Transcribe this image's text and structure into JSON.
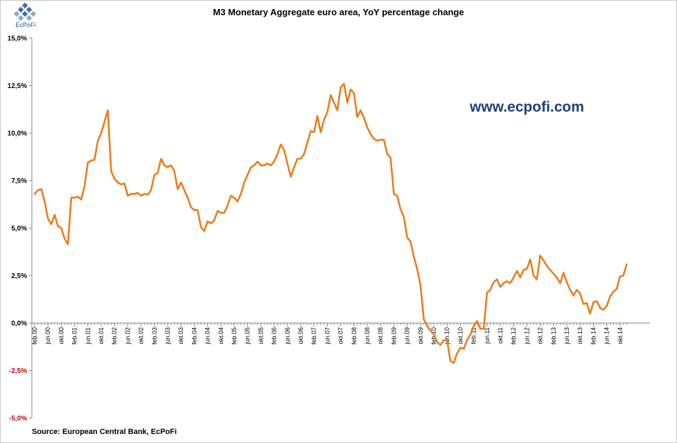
{
  "logo": {
    "text": "EcPoFi",
    "icon": "ecpofi-logo-icon"
  },
  "title": "M3 Monetary Aggregate euro area, YoY percentage change",
  "watermark": "www.ecpofi.com",
  "source": "Source: European Central Bank, EcPoFi",
  "colors": {
    "line": "#E87D1E",
    "negative_tick": "#C00000",
    "axis": "#868686"
  },
  "chart_data": {
    "type": "line",
    "title": "M3 Monetary Aggregate euro area, YoY percentage change",
    "ylim": [
      -5.0,
      15.0
    ],
    "yticks": [
      {
        "value": 15.0,
        "label": "15,0%"
      },
      {
        "value": 12.5,
        "label": "12,5%"
      },
      {
        "value": 10.0,
        "label": "10,0%"
      },
      {
        "value": 7.5,
        "label": "7,5%"
      },
      {
        "value": 5.0,
        "label": "5,0%"
      },
      {
        "value": 2.5,
        "label": "2,5%"
      },
      {
        "value": 0.0,
        "label": "0,0%"
      },
      {
        "value": -2.5,
        "label": "-2,5%"
      },
      {
        "value": -5.0,
        "label": "-5,0%"
      }
    ],
    "grid": false,
    "legend": "none",
    "x_start": "feb.00",
    "x_end": "jan.15",
    "xticks": [
      "feb.00",
      "jun.00",
      "okt.00",
      "feb.01",
      "jun.01",
      "okt.01",
      "feb.02",
      "jun.02",
      "okt.02",
      "feb.03",
      "jun.03",
      "okt.03",
      "feb.04",
      "jun.04",
      "okt.04",
      "feb.05",
      "jun.05",
      "okt.05",
      "feb.06",
      "jun.06",
      "okt.06",
      "feb.07",
      "jun.07",
      "okt.07",
      "feb.08",
      "jun.08",
      "okt.08",
      "feb.09",
      "jun.09",
      "okt.09",
      "feb.10",
      "jun.10",
      "okt.10",
      "feb.11",
      "jun.11",
      "okt.11",
      "feb.12",
      "jun.12",
      "okt.12",
      "feb.13",
      "jun.13",
      "okt.13",
      "feb.14",
      "jun.14",
      "okt.14"
    ],
    "series": [
      {
        "values": [
          6.8,
          7.0,
          7.05,
          6.4,
          5.5,
          5.2,
          5.7,
          5.1,
          5.0,
          4.45,
          4.15,
          6.6,
          6.6,
          6.65,
          6.5,
          7.2,
          8.45,
          8.55,
          8.6,
          9.6,
          10.0,
          10.6,
          11.2,
          8.0,
          7.6,
          7.4,
          7.3,
          7.35,
          6.7,
          6.8,
          6.8,
          6.85,
          6.7,
          6.8,
          6.75,
          7.0,
          7.8,
          7.9,
          8.65,
          8.3,
          8.2,
          8.3,
          8.0,
          7.05,
          7.4,
          7.0,
          6.6,
          6.1,
          5.95,
          5.95,
          5.05,
          4.85,
          5.35,
          5.25,
          5.4,
          5.9,
          5.8,
          5.8,
          6.2,
          6.7,
          6.6,
          6.4,
          6.8,
          7.4,
          7.8,
          8.2,
          8.3,
          8.5,
          8.3,
          8.3,
          8.4,
          8.3,
          8.5,
          8.9,
          9.4,
          9.1,
          8.4,
          7.7,
          8.2,
          8.65,
          8.65,
          8.9,
          9.5,
          10.1,
          10.05,
          10.9,
          10.05,
          10.7,
          11.1,
          12.0,
          11.6,
          11.2,
          12.4,
          12.6,
          11.6,
          12.3,
          12.1,
          10.85,
          11.2,
          10.8,
          10.3,
          9.95,
          9.7,
          9.6,
          9.65,
          9.65,
          8.9,
          8.7,
          6.8,
          6.7,
          6.0,
          5.6,
          4.5,
          4.3,
          3.5,
          2.85,
          2.0,
          0.2,
          -0.15,
          -0.4,
          -0.6,
          -1.0,
          -1.15,
          -0.9,
          -0.9,
          -2.0,
          -2.1,
          -1.6,
          -1.3,
          -1.35,
          -0.9,
          -0.6,
          -0.15,
          0.1,
          -0.3,
          -0.3,
          1.6,
          1.75,
          2.15,
          2.3,
          1.9,
          2.1,
          2.2,
          2.1,
          2.4,
          2.75,
          2.4,
          2.8,
          2.85,
          3.35,
          2.5,
          2.3,
          3.55,
          3.3,
          3.0,
          2.8,
          2.6,
          2.4,
          2.1,
          2.65,
          2.15,
          1.75,
          1.45,
          1.75,
          1.55,
          1.0,
          1.05,
          0.5,
          1.1,
          1.15,
          0.8,
          0.7,
          0.9,
          1.4,
          1.65,
          1.8,
          2.45,
          2.5,
          3.1
        ]
      }
    ]
  }
}
